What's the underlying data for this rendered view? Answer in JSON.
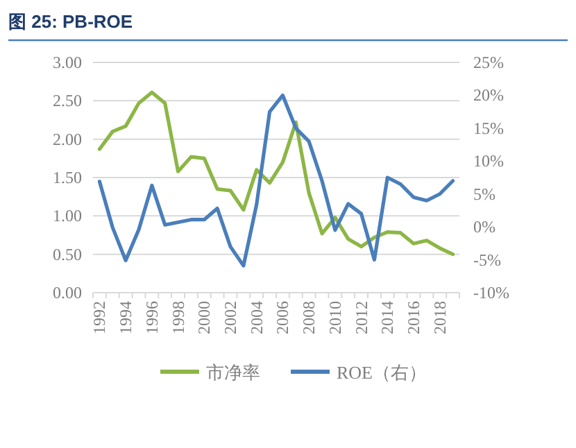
{
  "chart_data": {
    "type": "line",
    "title": "图 25: PB-ROE",
    "categories": [
      "1992",
      null,
      "1994",
      null,
      "1996",
      null,
      "1998",
      null,
      "2000",
      null,
      "2002",
      null,
      "2004",
      null,
      "2006",
      null,
      "2008",
      null,
      "2010",
      null,
      "2012",
      null,
      "2014",
      null,
      "2016",
      null,
      "2018",
      null
    ],
    "series": [
      {
        "name": "市净率",
        "color": "#8db646",
        "values": [
          1.87,
          2.1,
          2.17,
          2.47,
          2.61,
          2.47,
          1.58,
          1.77,
          1.75,
          1.35,
          1.33,
          1.08,
          1.6,
          1.43,
          1.7,
          2.22,
          1.3,
          0.77,
          0.98,
          0.7,
          0.6,
          0.72,
          0.79,
          0.78,
          0.64,
          0.68,
          0.58,
          0.5
        ]
      },
      {
        "name": "ROE（右）",
        "color": "#4a7ebb",
        "axis": "y2",
        "values": [
          6.9,
          -0.1,
          -5.1,
          -0.4,
          6.3,
          0.3,
          0.7,
          1.1,
          1.1,
          2.8,
          -3.0,
          -5.9,
          3.4,
          17.5,
          20.0,
          15.0,
          13.0,
          7.0,
          -0.5,
          3.5,
          2.0,
          -5.0,
          7.5,
          6.5,
          4.5,
          4.0,
          5.0,
          7.0
        ]
      }
    ],
    "ylim": [
      0,
      3
    ],
    "yticks": [
      {
        "value": 0,
        "label": "0.00"
      },
      {
        "value": 0.5,
        "label": "0.50"
      },
      {
        "value": 1,
        "label": "1.00"
      },
      {
        "value": 1.5,
        "label": "1.50"
      },
      {
        "value": 2,
        "label": "2.00"
      },
      {
        "value": 2.5,
        "label": "2.50"
      },
      {
        "value": 3,
        "label": "3.00"
      }
    ],
    "y2lim": [
      -10,
      25
    ],
    "y2ticks": [
      {
        "value": -10,
        "label": "-10%"
      },
      {
        "value": -5,
        "label": "-5%"
      },
      {
        "value": 0,
        "label": "0%"
      },
      {
        "value": 5,
        "label": "5%"
      },
      {
        "value": 10,
        "label": "10%"
      },
      {
        "value": 15,
        "label": "15%"
      },
      {
        "value": 20,
        "label": "20%"
      },
      {
        "value": 25,
        "label": "25%"
      }
    ],
    "grid": "y",
    "legend": "bottom",
    "marker": "none",
    "line_style": "solid"
  }
}
